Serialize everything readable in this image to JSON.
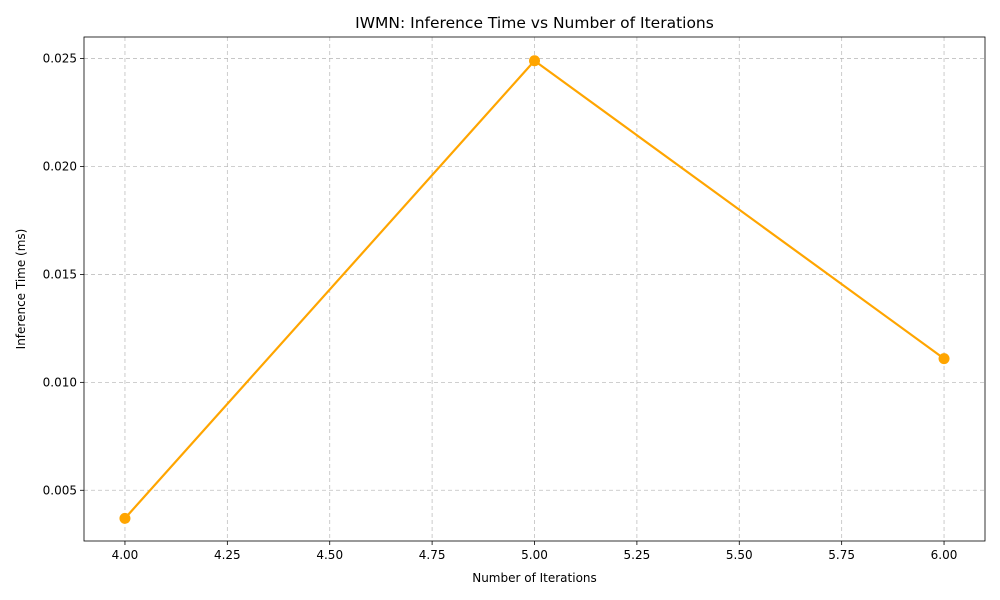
{
  "chart_data": {
    "type": "line",
    "title": "IWMN: Inference Time vs Number of Iterations",
    "xlabel": "Number of Iterations",
    "ylabel": "Inference Time (ms)",
    "xlim": [
      3.9,
      6.1
    ],
    "ylim": [
      0.00265,
      0.026
    ],
    "x_ticks": [
      4.0,
      4.25,
      4.5,
      4.75,
      5.0,
      5.25,
      5.5,
      5.75,
      6.0
    ],
    "x_tick_labels": [
      "4.00",
      "4.25",
      "4.50",
      "4.75",
      "5.00",
      "5.25",
      "5.50",
      "5.75",
      "6.00"
    ],
    "y_ticks": [
      0.005,
      0.01,
      0.015,
      0.02,
      0.025
    ],
    "y_tick_labels": [
      "0.005",
      "0.010",
      "0.015",
      "0.020",
      "0.025"
    ],
    "grid": true,
    "series": [
      {
        "color": "#FFA500",
        "x": [
          4,
          5,
          6
        ],
        "y": [
          0.0037,
          0.0249,
          0.0111
        ]
      }
    ]
  }
}
